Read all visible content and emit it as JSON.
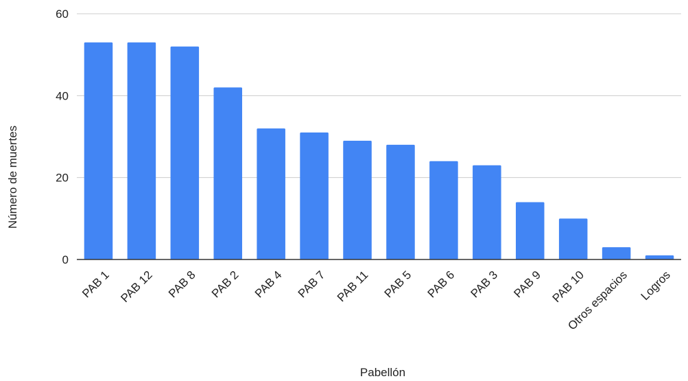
{
  "chart_data": {
    "type": "bar",
    "title": "",
    "xlabel": "Pabellón",
    "ylabel": "Número de muertes",
    "categories": [
      "PAB 1",
      "PAB 12",
      "PAB 8",
      "PAB 2",
      "PAB 4",
      "PAB 7",
      "PAB 11",
      "PAB 5",
      "PAB 6",
      "PAB 3",
      "PAB 9",
      "PAB 10",
      "Otros espacios",
      "Logros"
    ],
    "values": [
      53,
      53,
      52,
      42,
      32,
      31,
      29,
      28,
      24,
      23,
      14,
      10,
      3,
      1
    ],
    "ylim": [
      0,
      60
    ],
    "yticks": [
      "0",
      "20",
      "40",
      "60"
    ],
    "grid": true,
    "legend": "none",
    "colors": {
      "bar": "#4285f4",
      "grid": "#cccccc",
      "axis": "#333333"
    }
  }
}
